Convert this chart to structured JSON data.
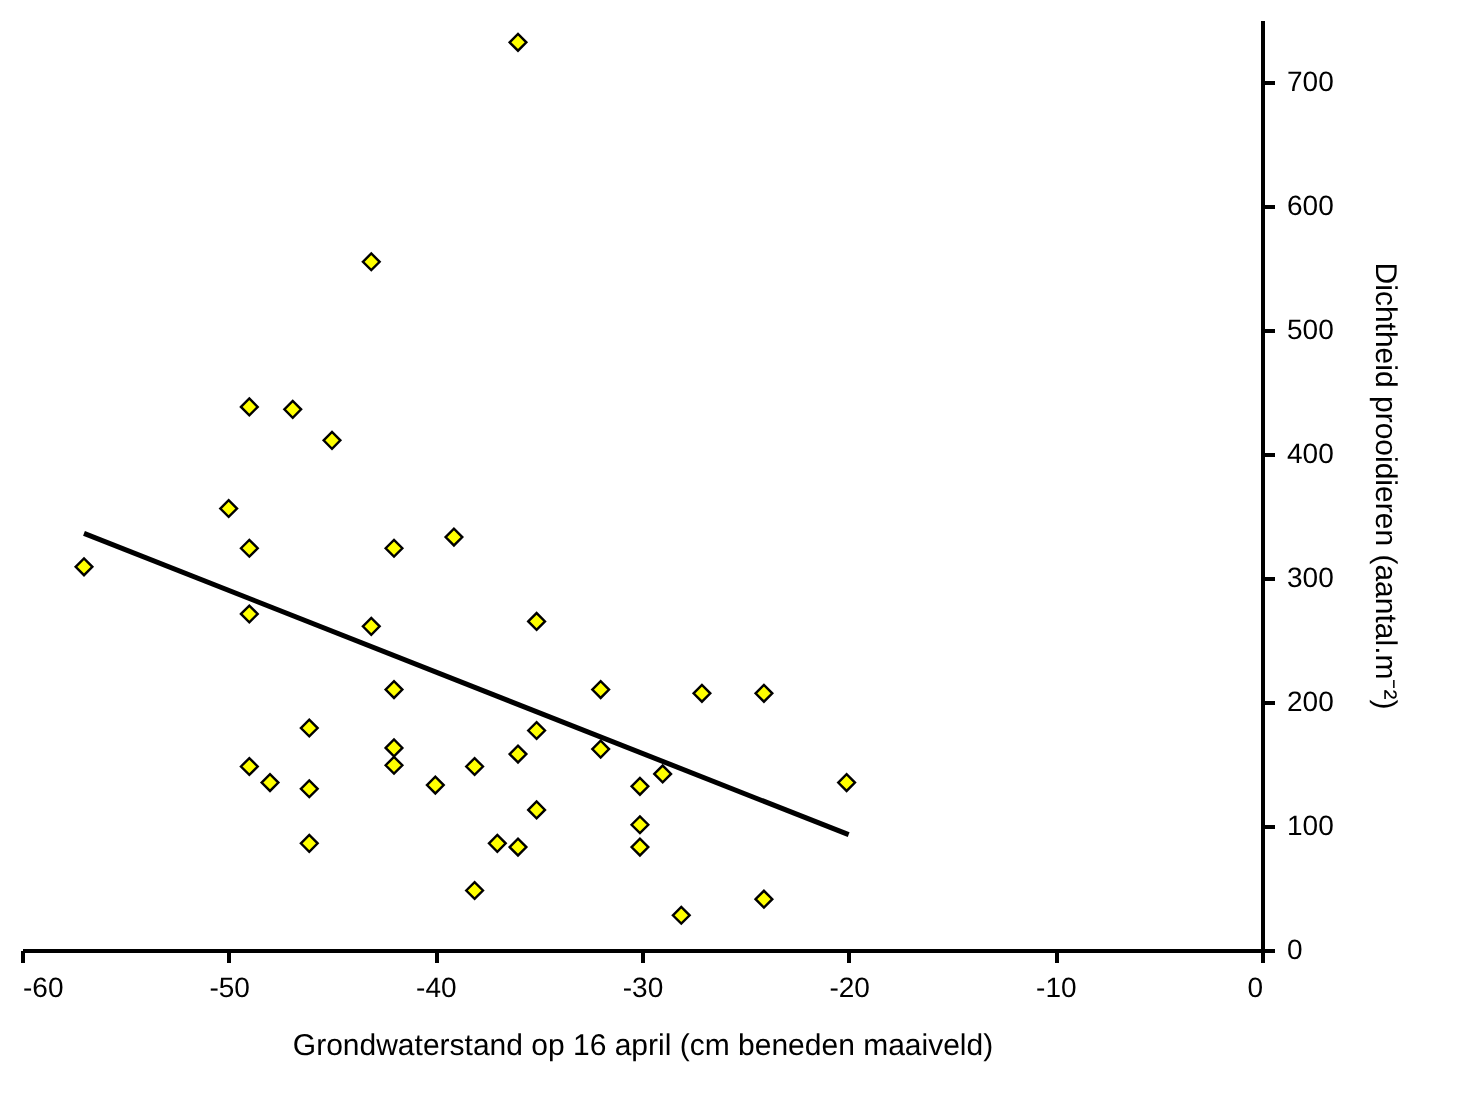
{
  "chart_data": {
    "type": "scatter",
    "xlabel": "Grondwaterstand op 16 april (cm beneden maaiveld)",
    "ylabel": "Dichtheid prooidieren (aantal.m⁻²)",
    "xlim": [
      -60,
      0
    ],
    "xticks": [
      -60,
      -50,
      -40,
      -30,
      -20,
      -10,
      0
    ],
    "ylim": [
      0,
      750
    ],
    "yticks": [
      0,
      100,
      200,
      300,
      400,
      500,
      600,
      700
    ],
    "grid": false,
    "series": [
      {
        "color": "#ffff00",
        "marker": "diamond",
        "x": [
          -36,
          -43.1,
          -49,
          -46.9,
          -45,
          -50,
          -49,
          -42,
          -39.1,
          -57,
          -49,
          -43.1,
          -35.1,
          -42,
          -32,
          -46.1,
          -35.1,
          -42,
          -42,
          -49,
          -48,
          -46.1,
          -40,
          -38.1,
          -36,
          -32,
          -30.1,
          -29,
          -35.1,
          -30.1,
          -30.1,
          -37,
          -36,
          -46.1,
          -38.1,
          -28.1,
          -27.1,
          -24.1,
          -20.1,
          -24.1
        ],
        "values": [
          732,
          555,
          438,
          436,
          411,
          356,
          324,
          324,
          333,
          309,
          271,
          261,
          265,
          210,
          210,
          179,
          177,
          163,
          149,
          148,
          135,
          130,
          133,
          148,
          158,
          162,
          132,
          142,
          113,
          101,
          83,
          86,
          83,
          86,
          48,
          28,
          207,
          207,
          135,
          41
        ]
      },
      {
        "type": "line",
        "color": "#000000",
        "line_style": "solid",
        "marker": "none",
        "x": [
          -57,
          -20
        ],
        "values": [
          336,
          93
        ]
      }
    ]
  }
}
